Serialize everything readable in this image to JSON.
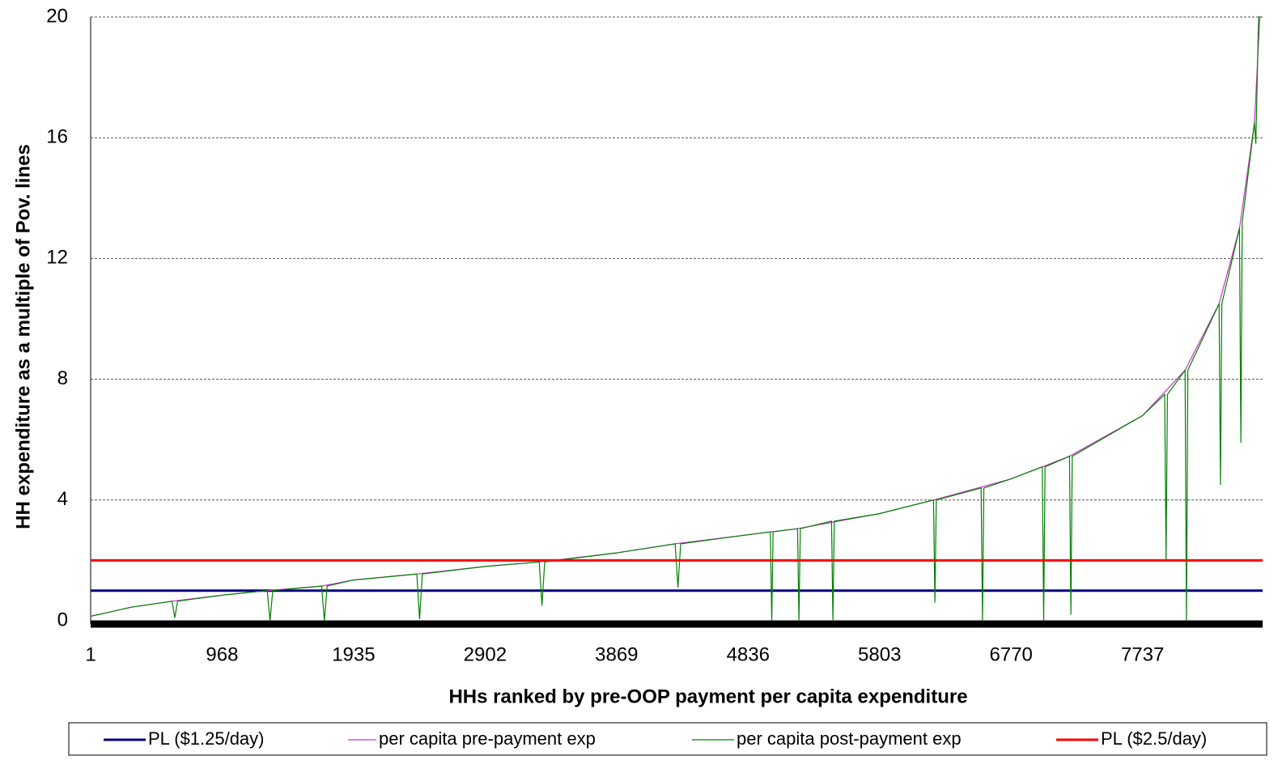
{
  "chart_data": {
    "type": "line",
    "xlabel": "HHs ranked by pre-OOP payment per capita expenditure",
    "ylabel": "HH expenditure as a multiple of Pov. lines",
    "xlim": [
      1,
      8620
    ],
    "xticks": [
      1,
      968,
      1935,
      2902,
      3869,
      4836,
      5803,
      6770,
      7737
    ],
    "ylim": [
      0,
      20
    ],
    "yticks": [
      0,
      4,
      8,
      12,
      16,
      20
    ],
    "grid": true,
    "legend": "bottom",
    "series": [
      {
        "name": "PL ($1.25/day)",
        "color": "#000080",
        "width": 3,
        "x": [
          1,
          8620
        ],
        "values": [
          1,
          1
        ]
      },
      {
        "name": "per capita pre-payment exp",
        "color": "#cc33cc",
        "width": 1.2,
        "x": [
          1,
          300,
          600,
          968,
          1300,
          1700,
          1935,
          2400,
          2902,
          3300,
          3869,
          4300,
          4836,
          5200,
          5803,
          6200,
          6770,
          7200,
          7737,
          8050,
          8300,
          8450,
          8560,
          8600
        ],
        "values": [
          0.15,
          0.45,
          0.65,
          0.85,
          1.0,
          1.15,
          1.35,
          1.55,
          1.8,
          1.95,
          2.25,
          2.55,
          2.85,
          3.05,
          3.55,
          4.0,
          4.7,
          5.45,
          6.8,
          8.3,
          10.5,
          13,
          16.5,
          20
        ]
      },
      {
        "name": "per capita post-payment exp",
        "color": "#008000",
        "width": 1.2,
        "x": [
          1,
          300,
          600,
          620,
          640,
          968,
          1300,
          1320,
          1340,
          1700,
          1720,
          1740,
          1935,
          2400,
          2420,
          2440,
          2902,
          3300,
          3320,
          3340,
          3869,
          4300,
          4320,
          4340,
          4836,
          5000,
          5010,
          5020,
          5200,
          5210,
          5220,
          5450,
          5460,
          5470,
          5803,
          6200,
          6210,
          6220,
          6550,
          6560,
          6570,
          6770,
          7000,
          7010,
          7020,
          7200,
          7210,
          7220,
          7737,
          7900,
          7910,
          7920,
          8050,
          8060,
          8070,
          8300,
          8310,
          8320,
          8450,
          8460,
          8470,
          8560,
          8570,
          8590,
          8610
        ],
        "values": [
          0.15,
          0.45,
          0.65,
          0.1,
          0.65,
          0.85,
          1.0,
          0,
          1.0,
          1.15,
          0,
          1.15,
          1.35,
          1.55,
          0.05,
          1.55,
          1.8,
          1.95,
          0.5,
          1.95,
          2.25,
          2.55,
          1.1,
          2.55,
          2.85,
          2.95,
          0,
          2.95,
          3.05,
          0,
          3.05,
          3.3,
          0,
          3.3,
          3.55,
          4.0,
          0.6,
          4.0,
          4.4,
          0,
          4.4,
          4.7,
          5.1,
          0,
          5.1,
          5.45,
          0.2,
          5.45,
          6.8,
          7.5,
          2.0,
          7.5,
          8.3,
          0,
          8.3,
          10.5,
          4.5,
          10.5,
          13,
          5.9,
          13.2,
          16.5,
          15.8,
          20,
          20
        ]
      },
      {
        "name": "PL ($2.5/day)",
        "color": "#ff0000",
        "width": 3,
        "x": [
          1,
          8620
        ],
        "values": [
          2,
          2
        ]
      }
    ]
  }
}
